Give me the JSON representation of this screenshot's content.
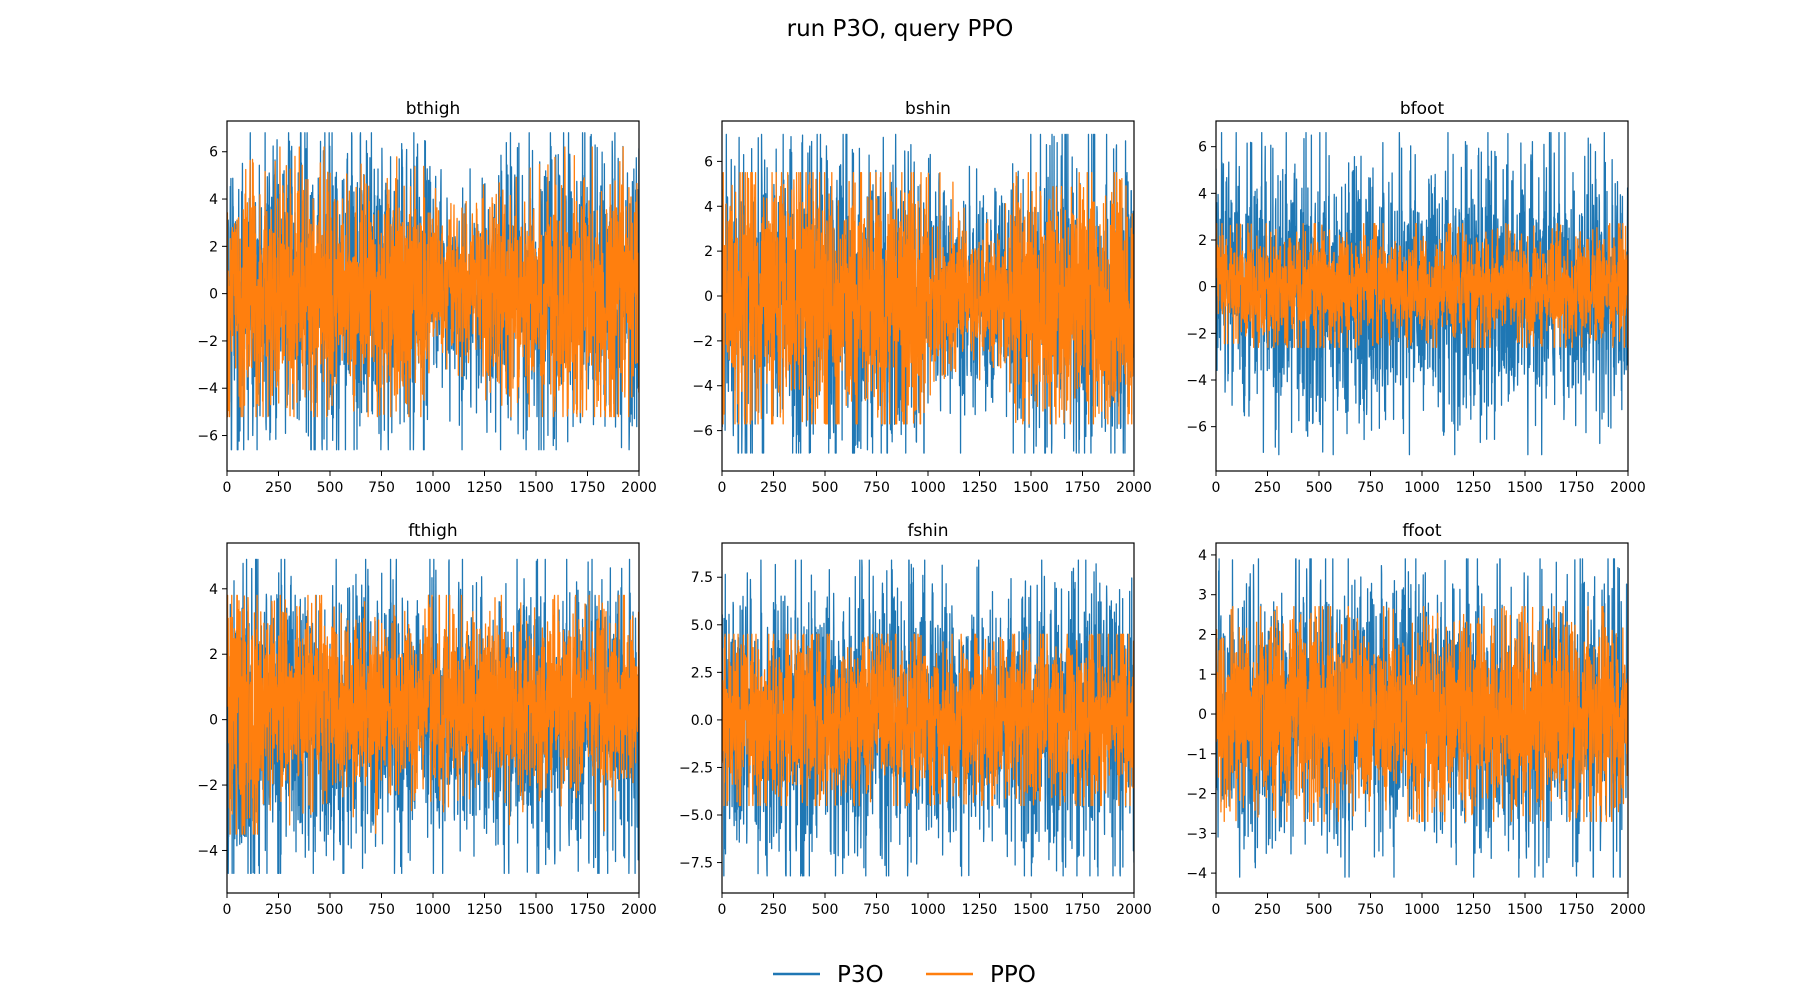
{
  "figure": {
    "title": "run P3O, query PPO",
    "legend": {
      "placement": "bottom-center",
      "entries": [
        {
          "name": "P3O",
          "color": "#1f77b4"
        },
        {
          "name": "PPO",
          "color": "#ff7f0e"
        }
      ]
    }
  },
  "chart_data": [
    {
      "type": "line",
      "title": "bthigh",
      "xlabel": "",
      "ylabel": "",
      "xlim": [
        0,
        2000
      ],
      "ylim": [
        -7.5,
        7.3
      ],
      "xticks": [
        0,
        250,
        500,
        750,
        1000,
        1250,
        1500,
        1750,
        2000
      ],
      "yticks": [
        -6,
        -4,
        -2,
        0,
        2,
        4,
        6
      ],
      "grid": false,
      "series": [
        {
          "name": "P3O",
          "color": "#1f77b4",
          "x": [
            0,
            500,
            1000,
            1030,
            1500,
            2000
          ],
          "amp": [
            4.8,
            4.8,
            4.6,
            2.8,
            4.8,
            4.8
          ],
          "min": -6.6,
          "max": 6.8,
          "mean": 0
        },
        {
          "name": "PPO",
          "color": "#ff7f0e",
          "x": [
            0,
            500,
            1000,
            1030,
            1500,
            2000
          ],
          "amp": [
            3.9,
            3.9,
            3.8,
            2.3,
            4.0,
            4.0
          ],
          "min": -5.2,
          "max": 6.2,
          "mean": 0
        }
      ]
    },
    {
      "type": "line",
      "title": "bshin",
      "xlabel": "",
      "ylabel": "",
      "xlim": [
        0,
        2000
      ],
      "ylim": [
        -7.8,
        7.8
      ],
      "xticks": [
        0,
        250,
        500,
        750,
        1000,
        1250,
        1500,
        1750,
        2000
      ],
      "yticks": [
        -6,
        -4,
        -2,
        0,
        2,
        4,
        6
      ],
      "grid": false,
      "series": [
        {
          "name": "P3O",
          "color": "#1f77b4",
          "x": [
            0,
            500,
            990,
            1010,
            1400,
            1430,
            2000
          ],
          "amp": [
            5.2,
            5.2,
            5.2,
            3.5,
            3.5,
            5.2,
            5.2
          ],
          "min": -7.0,
          "max": 7.2,
          "mean": -0.2
        },
        {
          "name": "PPO",
          "color": "#ff7f0e",
          "x": [
            0,
            500,
            990,
            1010,
            1400,
            1430,
            2000
          ],
          "amp": [
            4.5,
            4.6,
            4.5,
            2.5,
            2.6,
            4.4,
            4.4
          ],
          "min": -5.7,
          "max": 5.5,
          "mean": -0.2
        }
      ]
    },
    {
      "type": "line",
      "title": "bfoot",
      "xlabel": "",
      "ylabel": "",
      "xlim": [
        0,
        2000
      ],
      "ylim": [
        -7.9,
        7.1
      ],
      "xticks": [
        0,
        250,
        500,
        750,
        1000,
        1250,
        1500,
        1750,
        2000
      ],
      "yticks": [
        -6,
        -4,
        -2,
        0,
        2,
        4,
        6
      ],
      "grid": false,
      "series": [
        {
          "name": "P3O",
          "color": "#1f77b4",
          "x": [
            0,
            1000,
            2000
          ],
          "amp": [
            4.3,
            4.3,
            4.3
          ],
          "min": -7.2,
          "max": 6.6,
          "mean": 0
        },
        {
          "name": "PPO",
          "color": "#ff7f0e",
          "x": [
            0,
            1000,
            2000
          ],
          "amp": [
            1.9,
            1.9,
            1.9
          ],
          "min": -2.6,
          "max": 2.7,
          "mean": 0
        }
      ]
    },
    {
      "type": "line",
      "title": "fthigh",
      "xlabel": "",
      "ylabel": "",
      "xlim": [
        0,
        2000
      ],
      "ylim": [
        -5.3,
        5.4
      ],
      "xticks": [
        0,
        250,
        500,
        750,
        1000,
        1250,
        1500,
        1750,
        2000
      ],
      "yticks": [
        -4,
        -2,
        0,
        2,
        4
      ],
      "grid": false,
      "series": [
        {
          "name": "P3O",
          "color": "#1f77b4",
          "x": [
            0,
            150,
            160,
            1000,
            1050,
            1400,
            1440,
            2000
          ],
          "amp": [
            4.0,
            4.0,
            3.3,
            3.3,
            2.8,
            2.8,
            3.3,
            3.3
          ],
          "min": -4.7,
          "max": 4.9,
          "mean": 0
        },
        {
          "name": "PPO",
          "color": "#ff7f0e",
          "x": [
            0,
            150,
            160,
            1000,
            1050,
            1400,
            1440,
            2000
          ],
          "amp": [
            3.3,
            3.2,
            2.2,
            2.2,
            2.2,
            2.2,
            2.2,
            2.2
          ],
          "min": -3.5,
          "max": 3.8,
          "mean": 0.5
        }
      ]
    },
    {
      "type": "line",
      "title": "fshin",
      "xlabel": "",
      "ylabel": "",
      "xlim": [
        0,
        2000
      ],
      "ylim": [
        -9.1,
        9.3
      ],
      "xticks": [
        0,
        250,
        500,
        750,
        1000,
        1250,
        1500,
        1750,
        2000
      ],
      "yticks": [
        -7.5,
        -5.0,
        -2.5,
        0.0,
        2.5,
        5.0,
        7.5
      ],
      "grid": false,
      "series": [
        {
          "name": "P3O",
          "color": "#1f77b4",
          "x": [
            0,
            990,
            1010,
            1420,
            1450,
            2000
          ],
          "amp": [
            5.8,
            5.8,
            4.5,
            4.5,
            5.8,
            5.8
          ],
          "min": -8.2,
          "max": 8.4,
          "mean": 0
        },
        {
          "name": "PPO",
          "color": "#ff7f0e",
          "x": [
            0,
            990,
            1010,
            1420,
            1450,
            2000
          ],
          "amp": [
            3.6,
            3.6,
            3.2,
            3.2,
            3.6,
            3.6
          ],
          "min": -4.5,
          "max": 4.5,
          "mean": 0
        }
      ]
    },
    {
      "type": "line",
      "title": "ffoot",
      "xlabel": "",
      "ylabel": "",
      "xlim": [
        0,
        2000
      ],
      "ylim": [
        -4.5,
        4.3
      ],
      "xticks": [
        0,
        250,
        500,
        750,
        1000,
        1250,
        1500,
        1750,
        2000
      ],
      "yticks": [
        -4,
        -3,
        -2,
        -1,
        0,
        1,
        2,
        3,
        4
      ],
      "grid": false,
      "series": [
        {
          "name": "P3O",
          "color": "#1f77b4",
          "x": [
            0,
            1000,
            2000
          ],
          "amp": [
            2.6,
            2.6,
            2.6
          ],
          "min": -4.1,
          "max": 3.9,
          "mean": 0
        },
        {
          "name": "PPO",
          "color": "#ff7f0e",
          "x": [
            0,
            1000,
            2000
          ],
          "amp": [
            1.9,
            1.9,
            1.9
          ],
          "min": -2.7,
          "max": 2.7,
          "mean": 0
        }
      ]
    }
  ]
}
